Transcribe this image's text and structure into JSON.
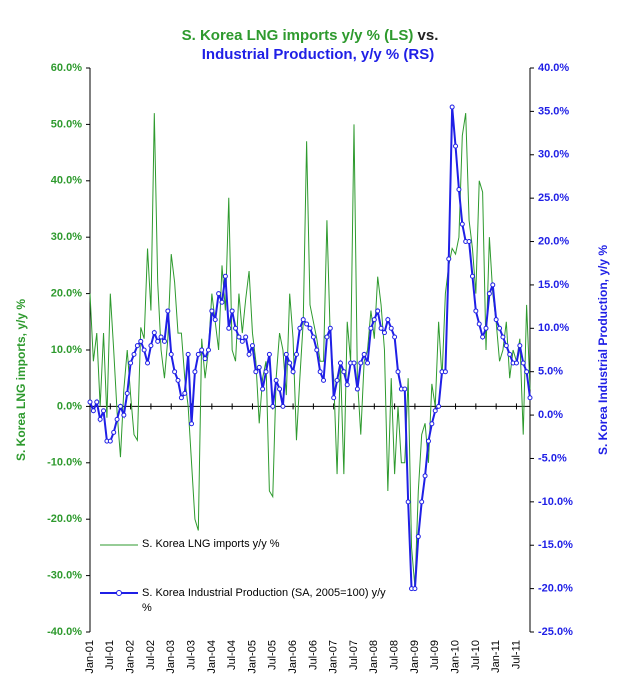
{
  "chart_data": {
    "type": "line",
    "title": [
      "S. Korea LNG imports y/y % (LS)",
      "vs.",
      "Industrial Production, y/y % (RS)"
    ],
    "y_label": "S. Korea LNG imports, y/y %",
    "y2_label": "S. Korea Industrial Production, y/y %",
    "categories": [
      "Jan-01",
      null,
      null,
      null,
      null,
      null,
      "Jul-01",
      null,
      null,
      null,
      null,
      null,
      "Jan-02",
      null,
      null,
      null,
      null,
      null,
      "Jul-02",
      null,
      null,
      null,
      null,
      null,
      "Jan-03",
      null,
      null,
      null,
      null,
      null,
      "Jul-03",
      null,
      null,
      null,
      null,
      null,
      "Jan-04",
      null,
      null,
      null,
      null,
      null,
      "Jul-04",
      null,
      null,
      null,
      null,
      null,
      "Jan-05",
      null,
      null,
      null,
      null,
      null,
      "Jul-05",
      null,
      null,
      null,
      null,
      null,
      "Jan-06",
      null,
      null,
      null,
      null,
      null,
      "Jul-06",
      null,
      null,
      null,
      null,
      null,
      "Jan-07",
      null,
      null,
      null,
      null,
      null,
      "Jul-07",
      null,
      null,
      null,
      null,
      null,
      "Jan-08",
      null,
      null,
      null,
      null,
      null,
      "Jul-08",
      null,
      null,
      null,
      null,
      null,
      "Jan-09",
      null,
      null,
      null,
      null,
      null,
      "Jul-09",
      null,
      null,
      null,
      null,
      null,
      "Jan-10",
      null,
      null,
      null,
      null,
      null,
      "Jul-10",
      null,
      null,
      null,
      null,
      null,
      "Jan-11",
      null,
      null,
      null,
      null,
      null,
      "Jul-11",
      null,
      null,
      null,
      null
    ],
    "series": [
      {
        "name": "S. Korea LNG imports y/y %",
        "color": "#2e9a2e",
        "axis": "y",
        "marker": false,
        "values": [
          20,
          8,
          13,
          0,
          13,
          -2,
          20,
          10,
          -1,
          -9,
          3,
          10,
          2,
          -5,
          -6,
          14,
          12,
          28,
          17,
          52,
          22,
          10,
          5,
          12,
          27,
          22,
          13,
          13,
          5,
          0,
          -10,
          -20,
          -22,
          12,
          5,
          10,
          20,
          15,
          10,
          25,
          17,
          37,
          10,
          8,
          20,
          13,
          19,
          24,
          13,
          8,
          -3,
          5,
          8,
          -15,
          -16,
          5,
          13,
          10,
          2,
          20,
          12,
          -6,
          5,
          15,
          47,
          18,
          15,
          12,
          8,
          8,
          33,
          12,
          5,
          -12,
          8,
          -12,
          15,
          8,
          50,
          5,
          -5,
          8,
          10,
          17,
          12,
          23,
          18,
          10,
          -15,
          5,
          -12,
          0,
          -10,
          -10,
          5,
          -25,
          -32,
          -15,
          -5,
          -3,
          -10,
          4,
          0,
          15,
          5,
          20,
          25,
          28,
          27,
          30,
          48,
          52,
          33,
          28,
          20,
          40,
          38,
          10,
          30,
          20,
          15,
          8,
          10,
          15,
          5,
          10,
          8,
          12,
          -5,
          18,
          3
        ]
      },
      {
        "name": "S. Korea Industrial Production (SA, 2005=100) y/y %",
        "color": "#1f1fe6",
        "axis": "y2",
        "marker": true,
        "values": [
          1.5,
          0.5,
          1.5,
          -0.5,
          0.5,
          -3,
          -3,
          -2,
          -0.5,
          1,
          0,
          2.5,
          6,
          7,
          8,
          8.5,
          7.5,
          6,
          8,
          9.5,
          8.5,
          9,
          8.5,
          12,
          7,
          5,
          4,
          2,
          2.5,
          7,
          -1,
          5,
          7,
          7.5,
          6.5,
          7.5,
          12,
          11,
          14,
          13,
          16,
          10,
          12,
          10,
          9,
          8.5,
          9,
          7,
          8,
          5,
          5.5,
          3,
          5,
          7,
          1,
          4,
          3,
          1,
          7,
          6,
          5,
          7,
          10,
          11,
          10.5,
          10,
          9,
          7.5,
          5,
          4,
          9,
          10,
          2,
          4,
          6,
          5,
          3.5,
          6,
          6,
          3,
          6,
          7,
          6,
          10,
          11,
          12,
          10,
          9.5,
          11,
          10,
          9,
          5,
          3,
          3,
          -10,
          -20,
          -20,
          -14,
          -10,
          -7,
          -3,
          -1,
          0.5,
          1,
          5,
          5,
          18,
          35.5,
          31,
          26,
          22,
          20,
          20,
          16,
          12,
          10.5,
          9,
          10,
          14,
          15,
          11,
          10,
          9,
          8,
          7,
          6,
          6,
          8,
          6,
          5,
          2
        ]
      }
    ],
    "ylim": [
      -40,
      60
    ],
    "yticks": [
      {
        "value": 60,
        "label": "60.0%"
      },
      {
        "value": 50,
        "label": "50.0%"
      },
      {
        "value": 40,
        "label": "40.0%"
      },
      {
        "value": 30,
        "label": "30.0%"
      },
      {
        "value": 20,
        "label": "20.0%"
      },
      {
        "value": 10,
        "label": "10.0%"
      },
      {
        "value": 0,
        "label": "0.0%"
      },
      {
        "value": -10,
        "label": "-10.0%"
      },
      {
        "value": -20,
        "label": "-20.0%"
      },
      {
        "value": -30,
        "label": "-30.0%"
      },
      {
        "value": -40,
        "label": "-40.0%"
      }
    ],
    "y2lim": [
      -25,
      40
    ],
    "y2ticks": [
      {
        "value": 40,
        "label": "40.0%"
      },
      {
        "value": 35,
        "label": "35.0%"
      },
      {
        "value": 30,
        "label": "30.0%"
      },
      {
        "value": 25,
        "label": "25.0%"
      },
      {
        "value": 20,
        "label": "20.0%"
      },
      {
        "value": 15,
        "label": "15.0%"
      },
      {
        "value": 10,
        "label": "10.0%"
      },
      {
        "value": 5,
        "label": "5.0%"
      },
      {
        "value": 0,
        "label": "0.0%"
      },
      {
        "value": -5,
        "label": "-5.0%"
      },
      {
        "value": -10,
        "label": "-10.0%"
      },
      {
        "value": -15,
        "label": "-15.0%"
      },
      {
        "value": -20,
        "label": "-20.0%"
      },
      {
        "value": -25,
        "label": "-25.0%"
      }
    ],
    "y_color": "#2e9a2e",
    "y2_color": "#1f1fe6"
  }
}
